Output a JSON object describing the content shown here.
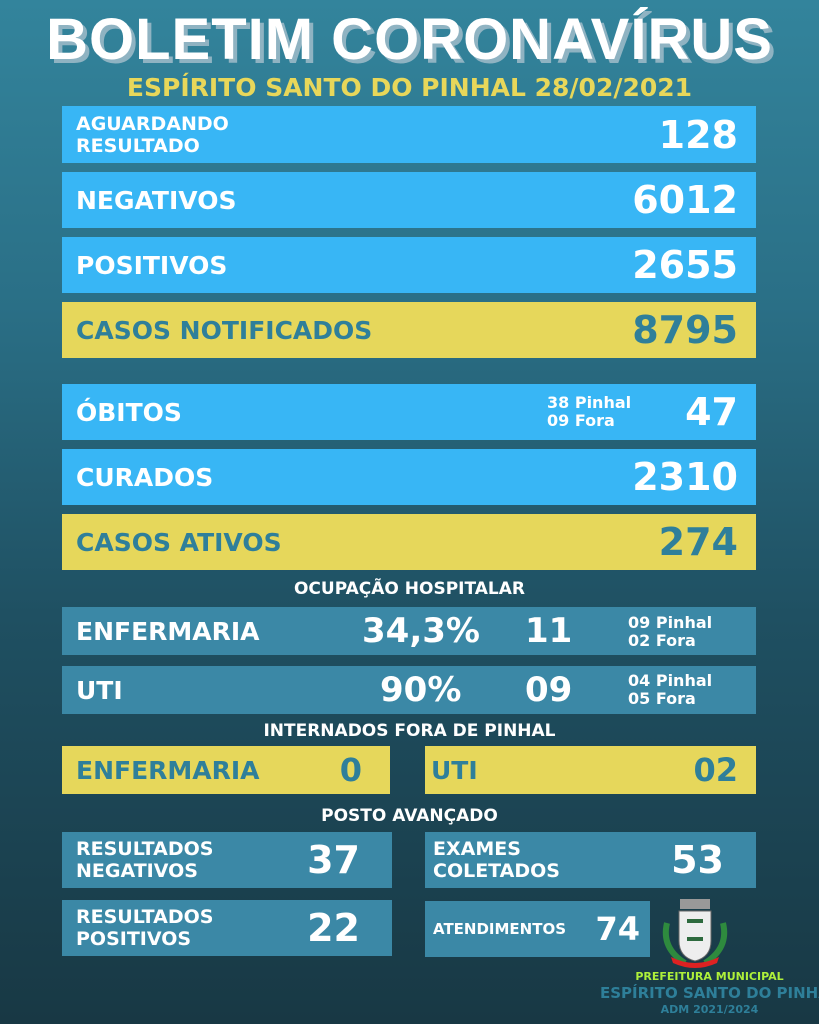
{
  "header": {
    "title": "BOLETIM CORONAVÍRUS",
    "subtitle": "ESPÍRITO SANTO DO PINHAL 28/02/2021"
  },
  "stats": {
    "aguardando": {
      "label_1": "AGUARDANDO",
      "label_2": "RESULTADO",
      "value": "128"
    },
    "negativos": {
      "label": "NEGATIVOS",
      "value": "6012"
    },
    "positivos": {
      "label": "POSITIVOS",
      "value": "2655"
    },
    "notificados": {
      "label": "CASOS NOTIFICADOS",
      "value": "8795"
    },
    "obitos": {
      "label": "ÓBITOS",
      "detail_1": "38 Pinhal",
      "detail_2": "09 Fora",
      "value": "47"
    },
    "curados": {
      "label": "CURADOS",
      "value": "2310"
    },
    "ativos": {
      "label": "CASOS ATIVOS",
      "value": "274"
    }
  },
  "ocupacao": {
    "title": "OCUPAÇÃO HOSPITALAR",
    "enfermaria": {
      "label": "ENFERMARIA",
      "percent": "34,3%",
      "count": "11",
      "detail_1": "09 Pinhal",
      "detail_2": "02 Fora"
    },
    "uti": {
      "label": "UTI",
      "percent": "90%",
      "count": "09",
      "detail_1": "04 Pinhal",
      "detail_2": "05 Fora"
    }
  },
  "fora": {
    "title": "INTERNADOS FORA DE PINHAL",
    "enfermaria_label": "ENFERMARIA",
    "enfermaria_value": "0",
    "uti_label": "UTI",
    "uti_value": "02"
  },
  "posto": {
    "title": "POSTO AVANÇADO",
    "neg_1": "RESULTADOS",
    "neg_2": "NEGATIVOS",
    "neg_value": "37",
    "exam_1": "EXAMES",
    "exam_2": "COLETADOS",
    "exam_value": "53",
    "pos_1": "RESULTADOS",
    "pos_2": "POSITIVOS",
    "pos_value": "22",
    "atend_label": "ATENDIMENTOS",
    "atend_value": "74"
  },
  "footer": {
    "line1": "PREFEITURA MUNICIPAL",
    "line2": "ESPÍRITO SANTO DO PINHAL",
    "line3": "ADM 2021/2024"
  },
  "colors": {
    "blue": "#38b6f5",
    "yellow": "#e6d75b",
    "teal": "#3b88a6"
  }
}
